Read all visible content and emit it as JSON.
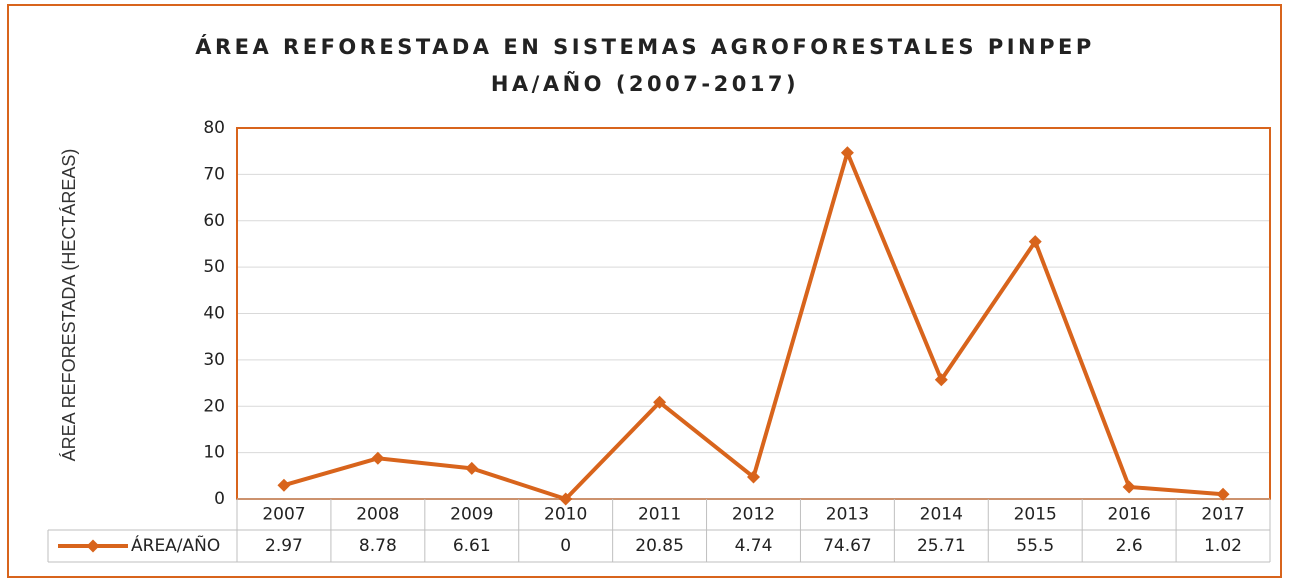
{
  "chart_data": {
    "type": "line",
    "title": [
      "ÁREA REFORESTADA EN SISTEMAS AGROFORESTALES PINPEP",
      "HA/AÑO (2007-2017)"
    ],
    "y_label": "ÁREA REFORESTADA (HECTÁREAS)",
    "categories": [
      "2007",
      "2008",
      "2009",
      "2010",
      "2011",
      "2012",
      "2013",
      "2014",
      "2015",
      "2016",
      "2017"
    ],
    "series": [
      {
        "name": "ÁREA/AÑO",
        "color": "#d8641c",
        "values": [
          2.97,
          8.78,
          6.61,
          0,
          20.85,
          4.74,
          74.67,
          25.71,
          55.5,
          2.6,
          1.02
        ]
      }
    ],
    "ylim": [
      0,
      80
    ],
    "yticks": [
      0,
      10,
      20,
      30,
      40,
      50,
      60,
      70,
      80
    ],
    "grid": true
  }
}
